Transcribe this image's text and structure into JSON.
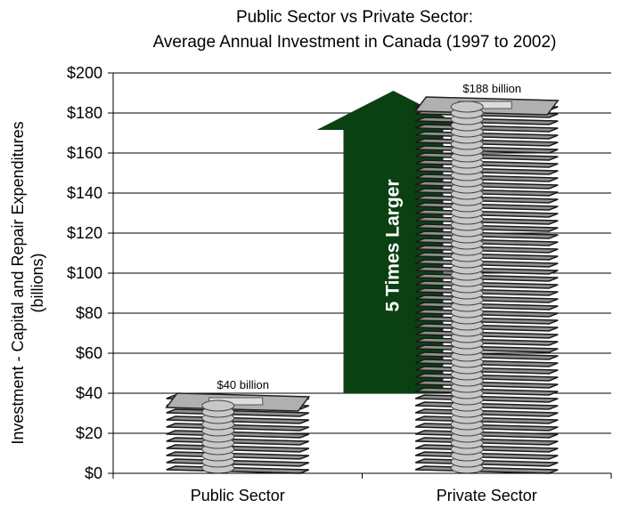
{
  "chart_data": {
    "type": "bar",
    "title_lines": [
      "Public Sector vs Private Sector:",
      "Average Annual Investment in Canada (1997 to 2002)"
    ],
    "ylabel_lines": [
      "Investment - Capital and Repair Expenditures",
      "(billions)"
    ],
    "xlabel": "",
    "categories": [
      "Public Sector",
      "Private Sector"
    ],
    "values": [
      40,
      188
    ],
    "value_labels": [
      "$40 billion",
      "$188 billion"
    ],
    "ylim": [
      0,
      200
    ],
    "yticks": [
      "$0",
      "$20",
      "$40",
      "$60",
      "$80",
      "$100",
      "$120",
      "$140",
      "$160",
      "$180",
      "$200"
    ],
    "grid": true,
    "annotation": "5 Times Larger",
    "colors": {
      "arrow": "#0b4012",
      "bill_face": "#8f8f8f",
      "bill_edge": "#1a1a1a",
      "coin": "#c8c8c8"
    }
  }
}
